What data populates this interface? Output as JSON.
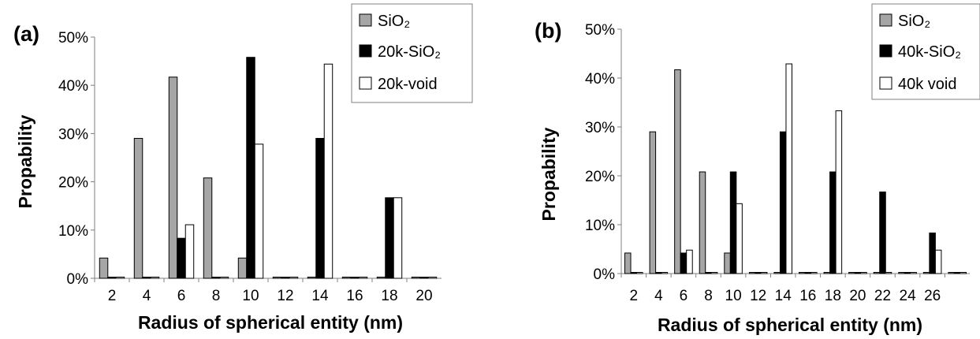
{
  "colors": {
    "SiO2": "#a6a6a6",
    "filled": "#000000",
    "void": "#ffffff",
    "outline": "#000000"
  },
  "chart_data": [
    {
      "type": "bar",
      "panel_label": "(a)",
      "xlabel": "Radius of spherical entity (nm)",
      "ylabel": "Propability",
      "ylim": [
        0,
        0.5
      ],
      "yticks": [
        "0%",
        "10%",
        "20%",
        "30%",
        "40%",
        "50%"
      ],
      "grid": false,
      "legend_position": "top-right",
      "categories": [
        "2",
        "4",
        "6",
        "8",
        "10",
        "12",
        "14",
        "16",
        "18",
        "20"
      ],
      "series": [
        {
          "name": "SiO₂",
          "color_key": "SiO2",
          "values": [
            0.042,
            0.29,
            0.417,
            0.208,
            0.042,
            0,
            0,
            0,
            0,
            0
          ]
        },
        {
          "name": "20k-SiO₂",
          "color_key": "filled",
          "values": [
            0,
            0,
            0.083,
            0,
            0.458,
            0,
            0.29,
            0,
            0.167,
            0
          ]
        },
        {
          "name": "20k-void",
          "color_key": "void",
          "values": [
            0,
            0,
            0.111,
            0,
            0.278,
            0,
            0.444,
            0,
            0.167,
            0
          ]
        }
      ]
    },
    {
      "type": "bar",
      "panel_label": "(b)",
      "xlabel": "Radius of spherical entity (nm)",
      "ylabel": "Propability",
      "ylim": [
        0,
        0.5
      ],
      "yticks": [
        "0%",
        "10%",
        "20%",
        "30%",
        "40%",
        "50%"
      ],
      "grid": false,
      "legend_position": "top-right",
      "categories": [
        "2",
        "4",
        "6",
        "8",
        "10",
        "12",
        "14",
        "16",
        "18",
        "20",
        "22",
        "24",
        "26",
        ""
      ],
      "series": [
        {
          "name": "SiO₂",
          "color_key": "SiO2",
          "values": [
            0.042,
            0.29,
            0.417,
            0.208,
            0.042,
            0,
            0,
            0,
            0,
            0,
            0,
            0,
            0,
            0
          ]
        },
        {
          "name": "40k-SiO₂",
          "color_key": "filled",
          "values": [
            0,
            0,
            0.042,
            0,
            0.208,
            0,
            0.29,
            0,
            0.208,
            0,
            0.167,
            0,
            0.083,
            0
          ]
        },
        {
          "name": "40k void",
          "color_key": "void",
          "values": [
            0,
            0,
            0.048,
            0,
            0.143,
            0,
            0.429,
            0,
            0.333,
            0,
            0,
            0,
            0.048,
            0
          ]
        }
      ]
    }
  ]
}
